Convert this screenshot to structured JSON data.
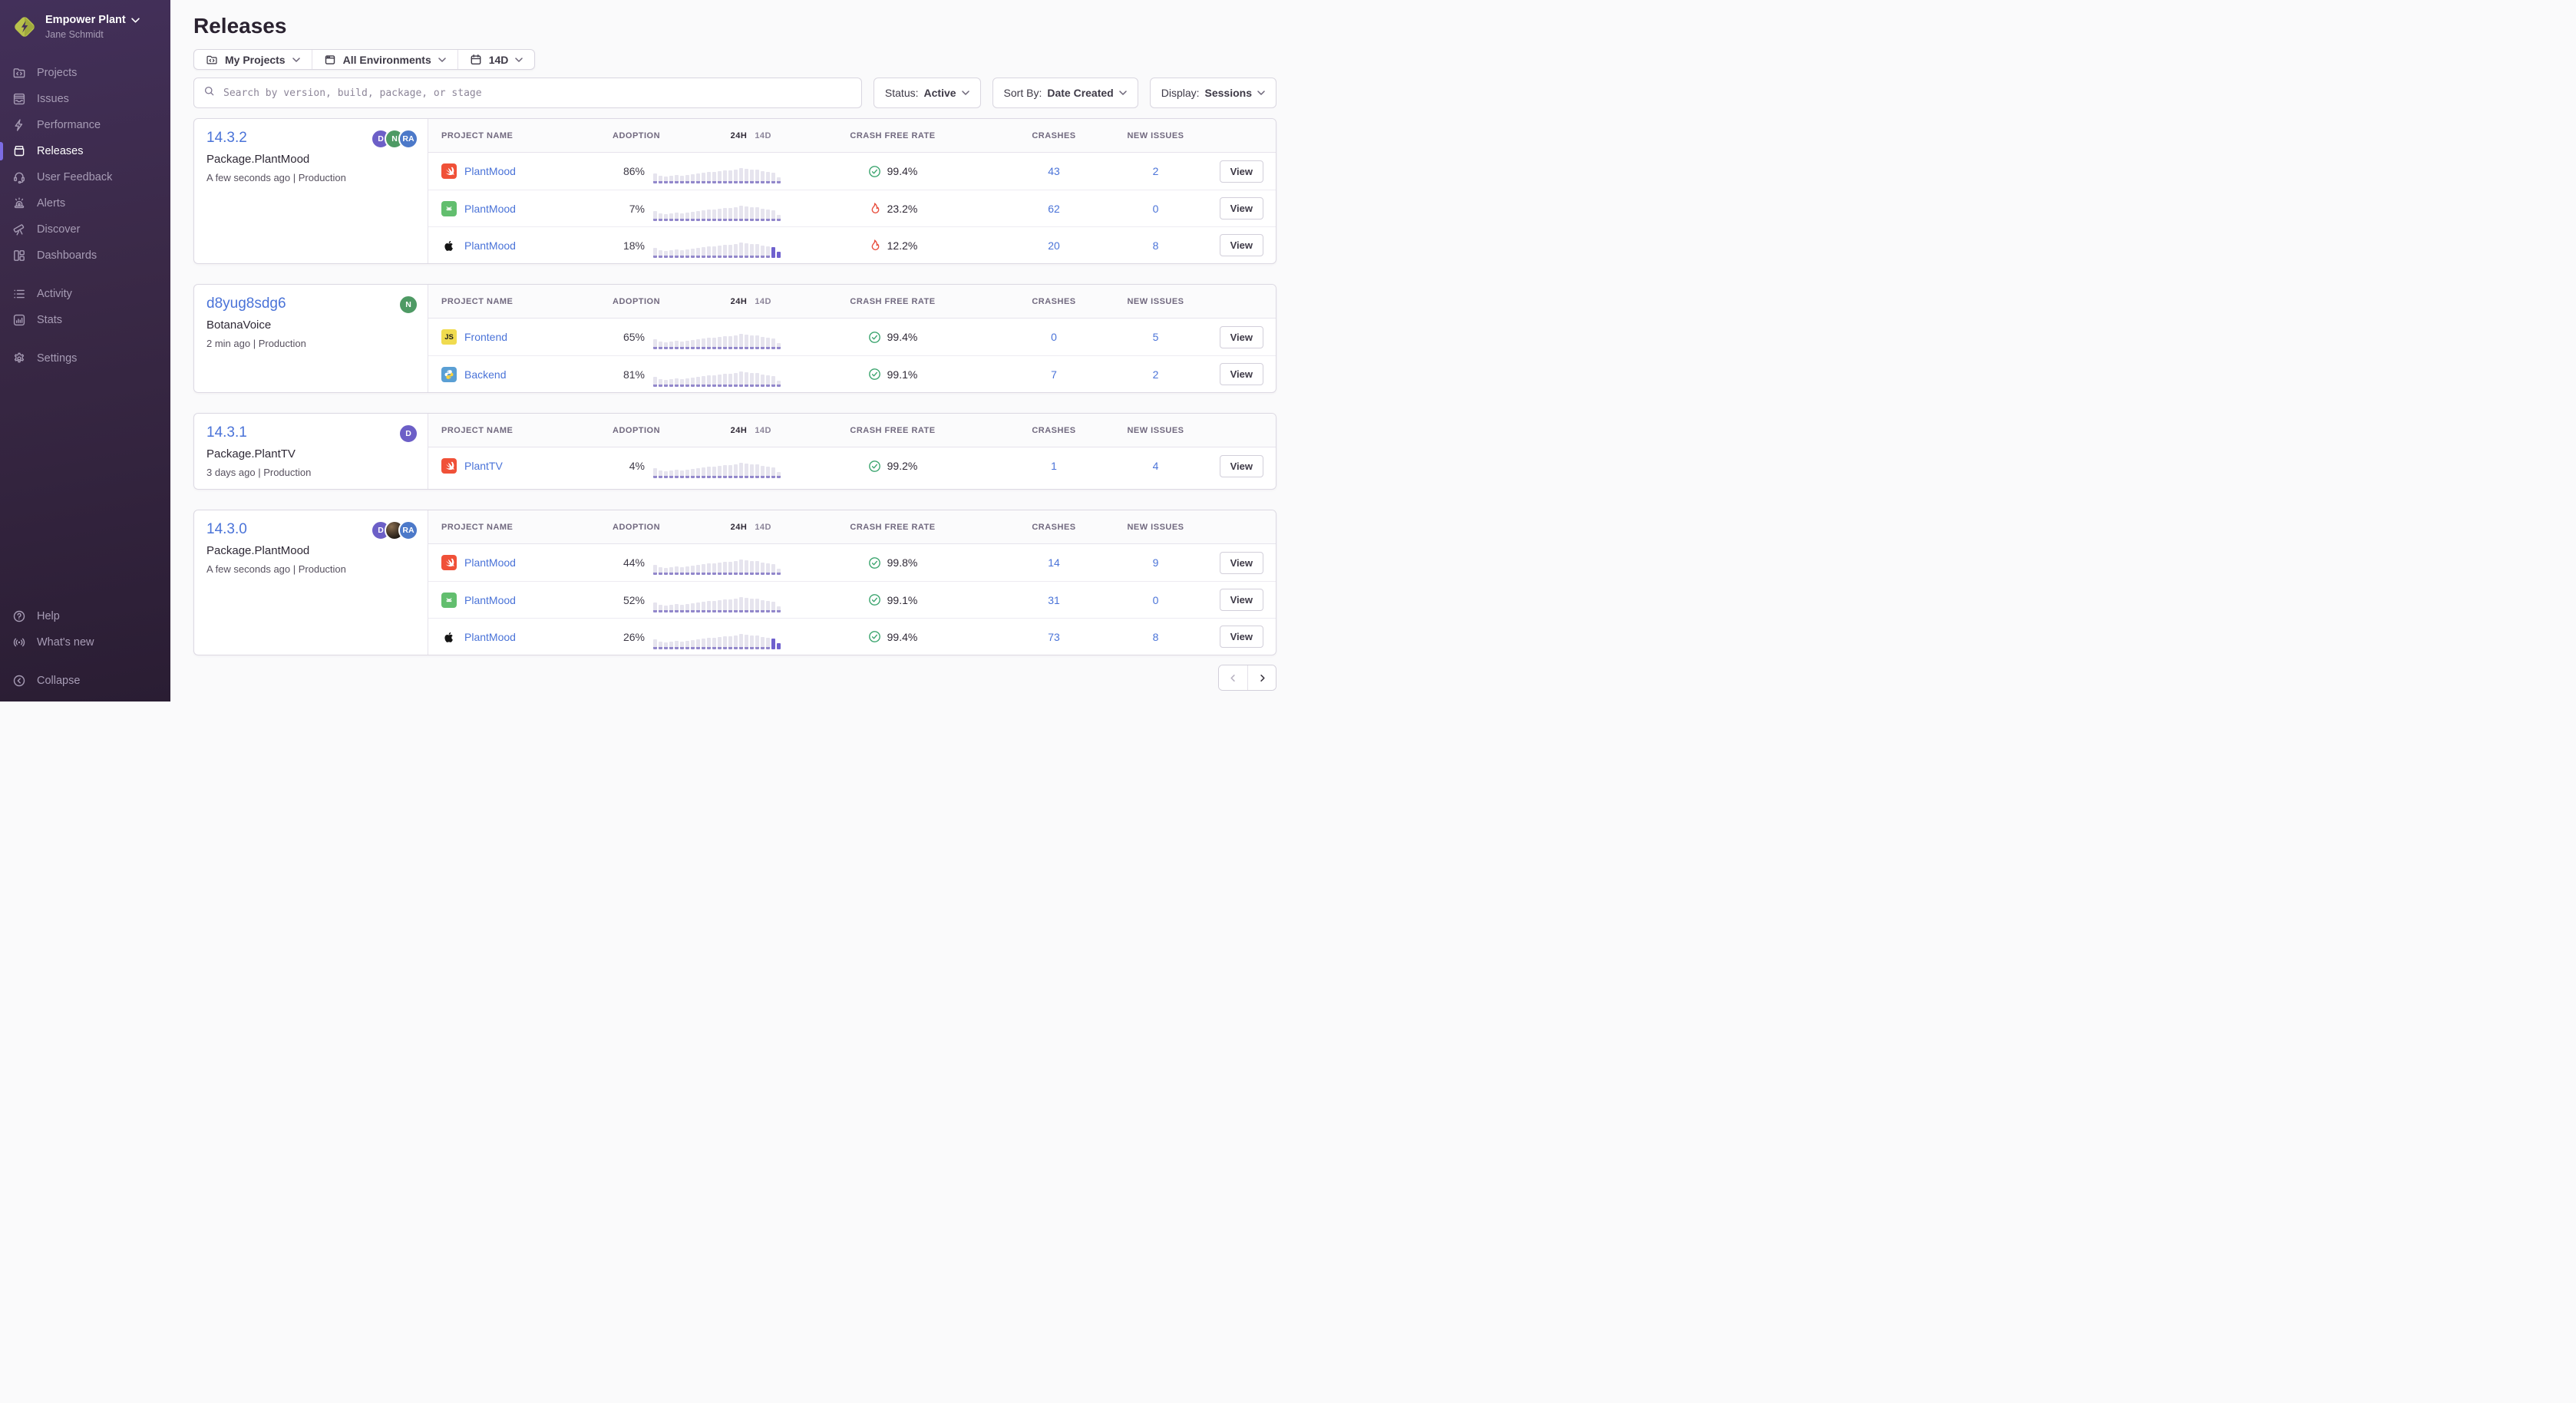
{
  "colors": {
    "accent": "#6C5FC7",
    "link": "#4A73D8",
    "good": "#3CA56F",
    "bad": "#E8503F",
    "sidebar_indicator": "#7C6CE4"
  },
  "sidebar": {
    "org": {
      "name": "Empower Plant",
      "user": "Jane Schmidt"
    },
    "sections": [
      {
        "items": [
          {
            "label": "Projects",
            "icon": "projects"
          },
          {
            "label": "Issues",
            "icon": "issues"
          },
          {
            "label": "Performance",
            "icon": "performance"
          },
          {
            "label": "Releases",
            "icon": "releases",
            "active": true
          },
          {
            "label": "User Feedback",
            "icon": "user-feedback"
          },
          {
            "label": "Alerts",
            "icon": "alerts"
          },
          {
            "label": "Discover",
            "icon": "discover"
          },
          {
            "label": "Dashboards",
            "icon": "dashboards"
          }
        ]
      },
      {
        "items": [
          {
            "label": "Activity",
            "icon": "activity"
          },
          {
            "label": "Stats",
            "icon": "stats"
          }
        ]
      },
      {
        "items": [
          {
            "label": "Settings",
            "icon": "settings"
          }
        ]
      }
    ],
    "footer_sections": [
      {
        "items": [
          {
            "label": "Help",
            "icon": "help"
          },
          {
            "label": "What's new",
            "icon": "whats-new"
          }
        ]
      },
      {
        "items": [
          {
            "label": "Collapse",
            "icon": "collapse"
          }
        ]
      }
    ]
  },
  "header": {
    "title": "Releases",
    "filters": [
      {
        "label": "My Projects",
        "icon": "projects"
      },
      {
        "label": "All Environments",
        "icon": "window"
      },
      {
        "label": "14D",
        "icon": "calendar"
      }
    ],
    "search_placeholder": "Search by version, build, package, or stage",
    "dropdowns": [
      {
        "label": "Status:",
        "value": "Active"
      },
      {
        "label": "Sort By:",
        "value": "Date Created"
      },
      {
        "label": "Display:",
        "value": "Sessions"
      }
    ]
  },
  "table_header": {
    "project": "PROJECT NAME",
    "adoption": "ADOPTION",
    "h24": "24H",
    "d14": "14D",
    "crash_free": "CRASH FREE RATE",
    "crashes": "CRASHES",
    "new_issues": "NEW ISSUES"
  },
  "view_label": "View",
  "sparkline_bars": [
    13,
    10,
    9,
    10,
    11,
    10,
    11,
    12,
    13,
    14,
    15,
    15,
    16,
    17,
    17,
    18,
    20,
    19,
    18,
    18,
    16,
    15,
    14,
    8
  ],
  "releases": [
    {
      "version": "14.3.2",
      "package": "Package.PlantMood",
      "meta": "A few seconds ago | Production",
      "avatars": [
        {
          "type": "initials",
          "text": "D",
          "color": "#6C5FC7"
        },
        {
          "type": "initials",
          "text": "N",
          "color": "#4E9A64"
        },
        {
          "type": "initials",
          "text": "RA",
          "color": "#4C79C9"
        }
      ],
      "rows": [
        {
          "project": "PlantMood",
          "platform": "swift",
          "adoption": "86%",
          "crash_free": "99.4%",
          "status": "good",
          "crashes": "43",
          "new_issues": "2",
          "spark_highlight": 0
        },
        {
          "project": "PlantMood",
          "platform": "android",
          "adoption": "7%",
          "crash_free": "23.2%",
          "status": "bad",
          "crashes": "62",
          "new_issues": "0",
          "spark_highlight": 0
        },
        {
          "project": "PlantMood",
          "platform": "apple",
          "adoption": "18%",
          "crash_free": "12.2%",
          "status": "bad",
          "crashes": "20",
          "new_issues": "8",
          "spark_highlight": 2
        }
      ]
    },
    {
      "version": "d8yug8sdg6",
      "package": "BotanaVoice",
      "meta": "2 min ago | Production",
      "avatars": [
        {
          "type": "initials",
          "text": "N",
          "color": "#4E9A64"
        }
      ],
      "rows": [
        {
          "project": "Frontend",
          "platform": "javascript",
          "adoption": "65%",
          "crash_free": "99.4%",
          "status": "good",
          "crashes": "0",
          "new_issues": "5",
          "spark_highlight": 0
        },
        {
          "project": "Backend",
          "platform": "python",
          "adoption": "81%",
          "crash_free": "99.1%",
          "status": "good",
          "crashes": "7",
          "new_issues": "2",
          "spark_highlight": 0
        }
      ]
    },
    {
      "version": "14.3.1",
      "package": "Package.PlantTV",
      "meta": "3 days ago | Production",
      "avatars": [
        {
          "type": "initials",
          "text": "D",
          "color": "#6C5FC7"
        }
      ],
      "rows": [
        {
          "project": "PlantTV",
          "platform": "swift",
          "adoption": "4%",
          "crash_free": "99.2%",
          "status": "good",
          "crashes": "1",
          "new_issues": "4",
          "spark_highlight": 0
        }
      ]
    },
    {
      "version": "14.3.0",
      "package": "Package.PlantMood",
      "meta": "A few seconds ago | Production",
      "avatars": [
        {
          "type": "initials",
          "text": "D",
          "color": "#6C5FC7"
        },
        {
          "type": "photo"
        },
        {
          "type": "initials",
          "text": "RA",
          "color": "#4C79C9"
        }
      ],
      "rows": [
        {
          "project": "PlantMood",
          "platform": "swift",
          "adoption": "44%",
          "crash_free": "99.8%",
          "status": "good",
          "crashes": "14",
          "new_issues": "9",
          "spark_highlight": 0
        },
        {
          "project": "PlantMood",
          "platform": "android",
          "adoption": "52%",
          "crash_free": "99.1%",
          "status": "good",
          "crashes": "31",
          "new_issues": "0",
          "spark_highlight": 0
        },
        {
          "project": "PlantMood",
          "platform": "apple",
          "adoption": "26%",
          "crash_free": "99.4%",
          "status": "good",
          "crashes": "73",
          "new_issues": "8",
          "spark_highlight": 2
        }
      ]
    }
  ],
  "pagination": {
    "prev_enabled": false,
    "next_enabled": true
  }
}
